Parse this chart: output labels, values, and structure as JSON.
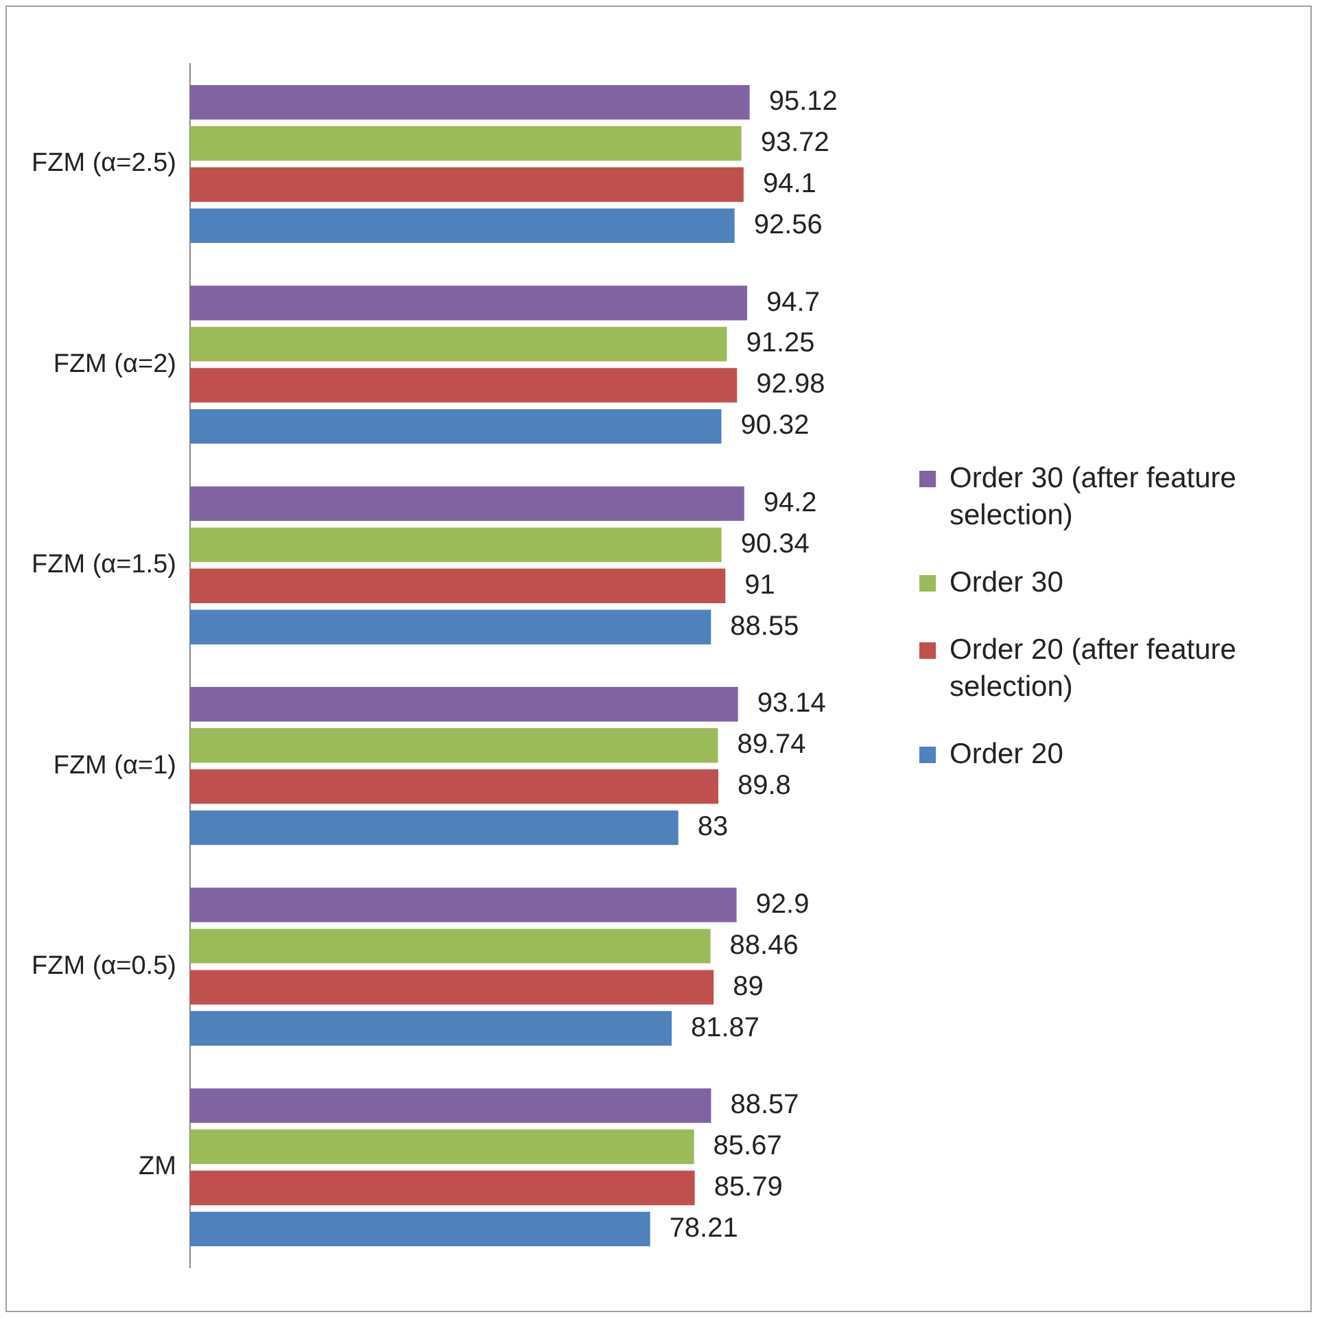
{
  "chart_data": {
    "type": "bar",
    "orientation": "horizontal",
    "categories": [
      "FZM (α=2.5)",
      "FZM (α=2)",
      "FZM (α=1.5)",
      "FZM (α=1)",
      "FZM (α=0.5)",
      "ZM"
    ],
    "series": [
      {
        "name": "Order 30 (after feature selection)",
        "color": "#8064a2",
        "values": [
          95.12,
          94.7,
          94.2,
          93.14,
          92.9,
          88.57
        ]
      },
      {
        "name": "Order 30",
        "color": "#9bbb59",
        "values": [
          93.72,
          91.25,
          90.34,
          89.74,
          88.46,
          85.67
        ]
      },
      {
        "name": "Order 20 (after feature selection)",
        "color": "#c0504d",
        "values": [
          94.1,
          92.98,
          91,
          89.8,
          89,
          85.79
        ]
      },
      {
        "name": "Order 20",
        "color": "#4f81bd",
        "values": [
          92.56,
          90.32,
          88.55,
          83,
          81.87,
          78.21
        ]
      }
    ],
    "data_labels": true,
    "legend": "right",
    "grid": false,
    "tick_labels": "y"
  }
}
